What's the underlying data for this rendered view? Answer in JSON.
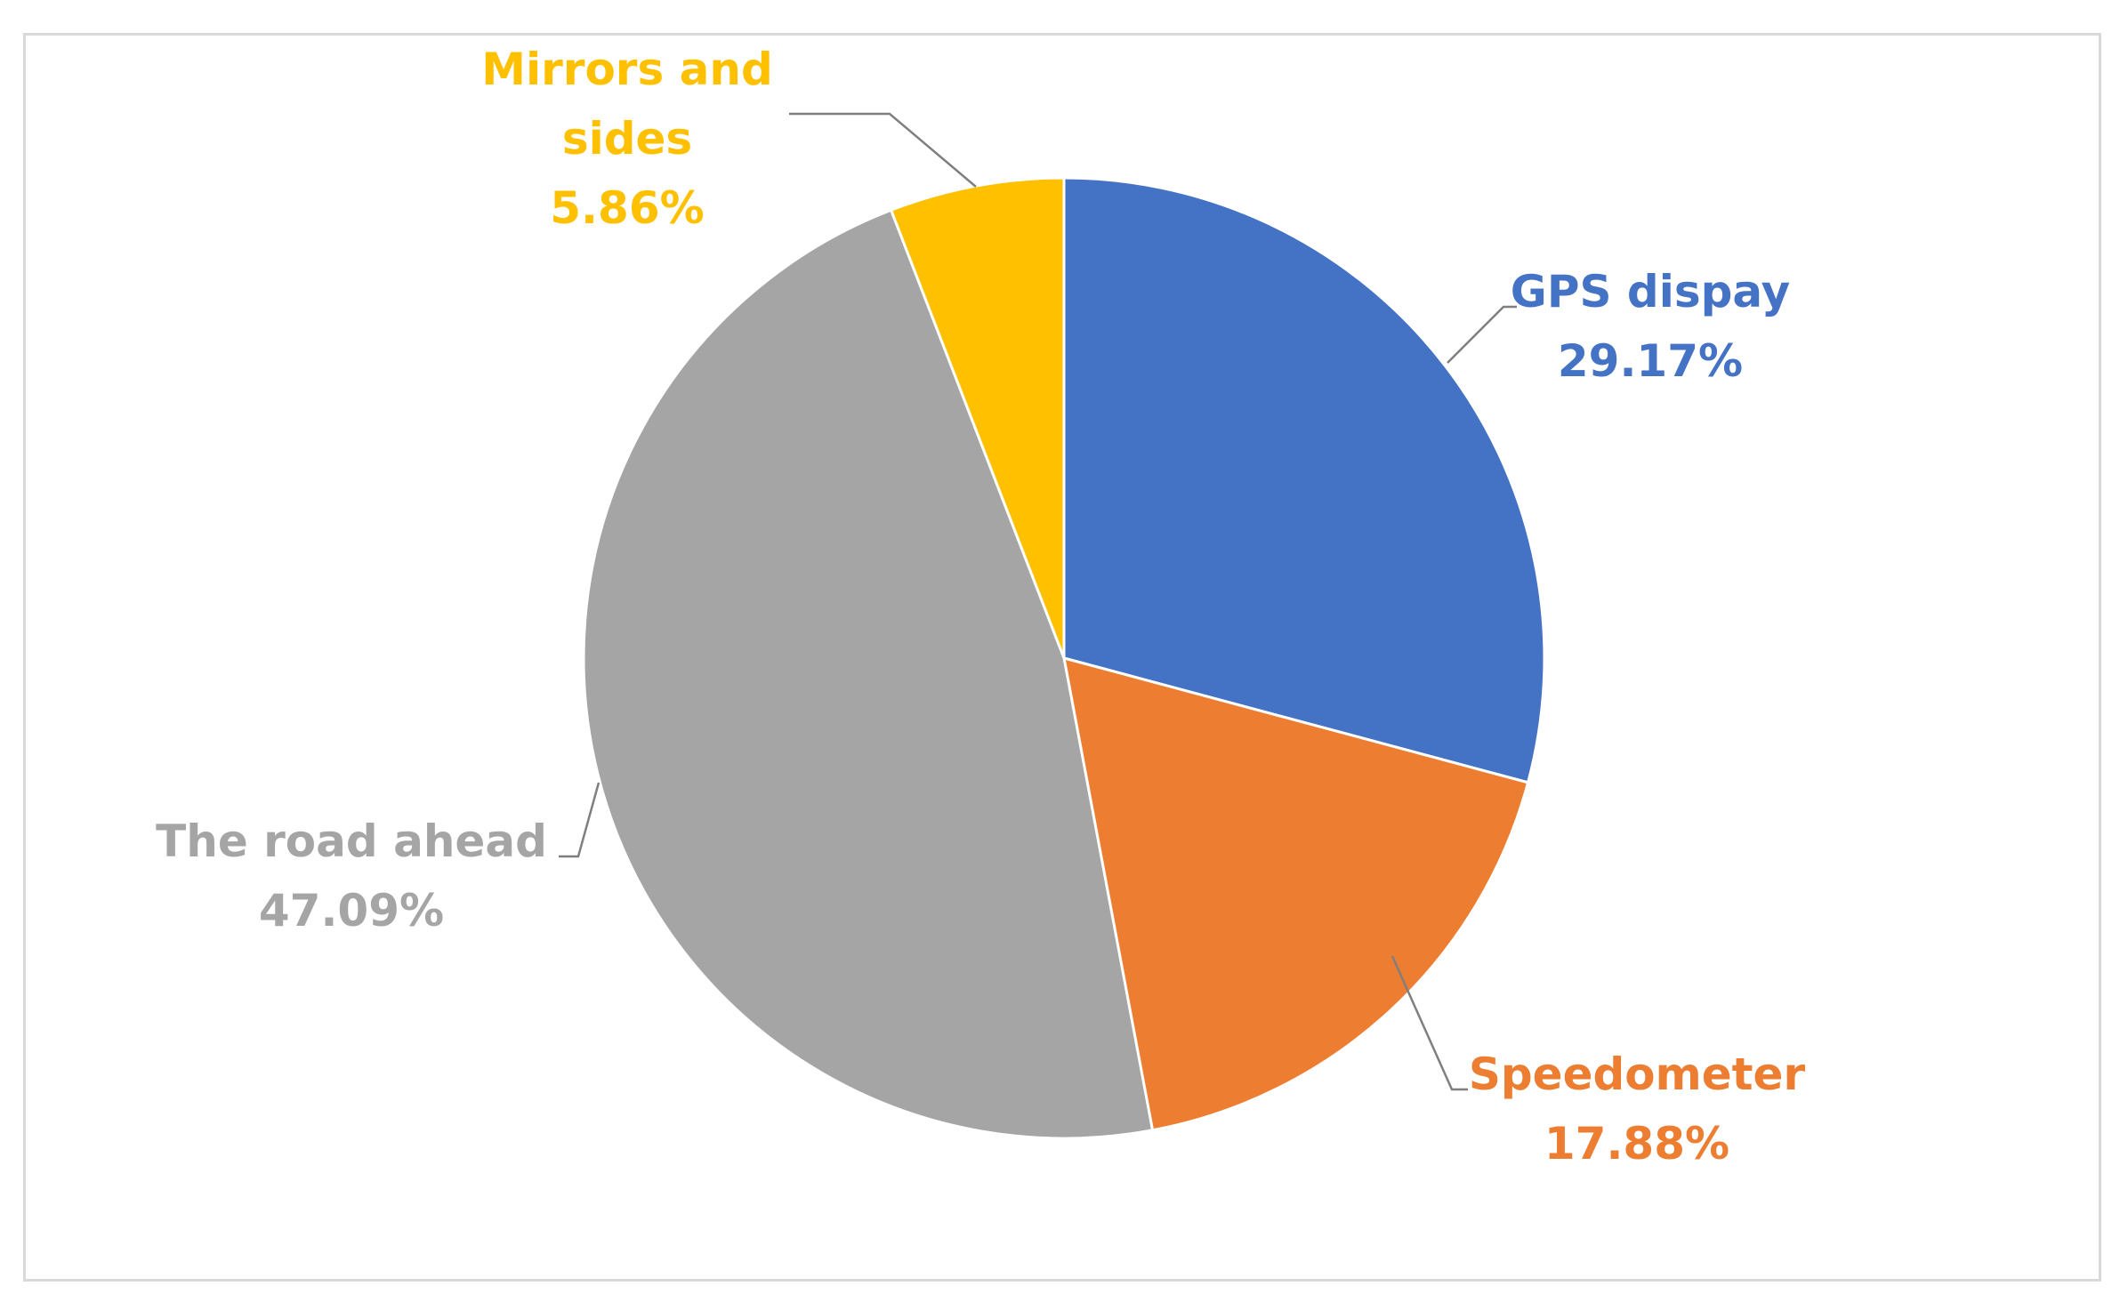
{
  "chart_data": {
    "type": "pie",
    "start_angle_deg": 0,
    "direction": "clockwise",
    "legend": "none",
    "slices": [
      {
        "label": "GPS dispay",
        "value": 29.17,
        "value_label": "29.17%",
        "color": "#4472c4"
      },
      {
        "label": "Speedometer",
        "value": 17.88,
        "value_label": "17.88%",
        "color": "#ed7d31"
      },
      {
        "label": "The road ahead",
        "value": 47.09,
        "value_label": "47.09%",
        "color": "#a5a5a5"
      },
      {
        "label": "Mirrors and sides",
        "label_lines": [
          "Mirrors  and",
          "sides"
        ],
        "value": 5.86,
        "value_label": "5.86%",
        "color": "#ffc000"
      }
    ]
  }
}
